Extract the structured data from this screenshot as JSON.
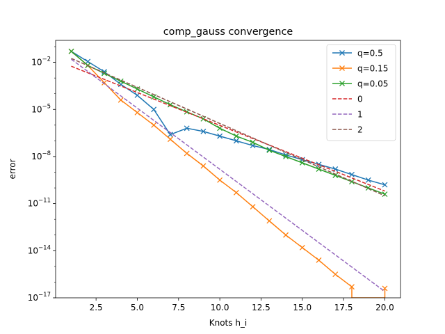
{
  "chart_data": {
    "type": "line",
    "title": "comp_gauss convergence",
    "xlabel": "Knots h_i",
    "ylabel": "error",
    "xlim": [
      0.05,
      20.95
    ],
    "ylim_log10": [
      -17,
      -0.6
    ],
    "yscale": "log",
    "x_ticks": [
      2.5,
      5.0,
      7.5,
      10.0,
      12.5,
      15.0,
      17.5,
      20.0
    ],
    "x_tick_labels": [
      "2.5",
      "5.0",
      "7.5",
      "10.0",
      "12.5",
      "15.0",
      "17.5",
      "20.0"
    ],
    "y_ticks_log10": [
      -17,
      -14,
      -11,
      -8,
      -5,
      -2
    ],
    "y_tick_labels": [
      {
        "base": "10",
        "exp": "−17"
      },
      {
        "base": "10",
        "exp": "−14"
      },
      {
        "base": "10",
        "exp": "−11"
      },
      {
        "base": "10",
        "exp": "−8"
      },
      {
        "base": "10",
        "exp": "−5"
      },
      {
        "base": "10",
        "exp": "−2"
      }
    ],
    "legend_position": "top-right",
    "series": [
      {
        "name": "q=0.5",
        "color": "#1f77b4",
        "style": "solid-x",
        "x": [
          1,
          2,
          3,
          4,
          5,
          6,
          7,
          8,
          9,
          10,
          11,
          12,
          13,
          14,
          15,
          16,
          17,
          18,
          19,
          20
        ],
        "log10_y": [
          -1.3,
          -1.95,
          -2.6,
          -3.4,
          -4.1,
          -5.0,
          -6.6,
          -6.2,
          -6.4,
          -6.7,
          -7.0,
          -7.3,
          -7.55,
          -7.9,
          -8.2,
          -8.5,
          -8.8,
          -9.15,
          -9.5,
          -9.8
        ]
      },
      {
        "name": "q=0.15",
        "color": "#ff7f0e",
        "style": "solid-x",
        "x": [
          1,
          2,
          3,
          4,
          5,
          6,
          7,
          8,
          9,
          10,
          11,
          12,
          13,
          14,
          15,
          16,
          17,
          18,
          18,
          20,
          20
        ],
        "log10_y": [
          -1.3,
          -2.2,
          -3.3,
          -4.4,
          -5.2,
          -6.0,
          -6.9,
          -7.8,
          -8.6,
          -9.5,
          -10.3,
          -11.2,
          -12.1,
          -13.0,
          -13.8,
          -14.6,
          -15.5,
          -16.3,
          -17,
          -17,
          -16.4
        ],
        "note_drop": "drops to 0 at x=18 and x=19"
      },
      {
        "name": "q=0.05",
        "color": "#2ca02c",
        "style": "solid-x",
        "x": [
          1,
          2,
          3,
          4,
          5,
          6,
          7,
          8,
          9,
          10,
          11,
          12,
          13,
          14,
          15,
          16,
          17,
          18,
          19,
          20
        ],
        "log10_y": [
          -1.3,
          -2.2,
          -2.7,
          -3.2,
          -3.7,
          -4.2,
          -4.7,
          -5.15,
          -5.6,
          -6.2,
          -6.7,
          -7.1,
          -7.6,
          -8.0,
          -8.4,
          -8.8,
          -9.2,
          -9.6,
          -10.0,
          -10.4
        ]
      },
      {
        "name": "0",
        "color": "#d62728",
        "style": "dashed",
        "x": [
          1,
          20
        ],
        "log10_y": [
          -2.25,
          -10.2
        ]
      },
      {
        "name": "1",
        "color": "#9467bd",
        "style": "dashed",
        "x": [
          1,
          20
        ],
        "log10_y": [
          -1.8,
          -16.6
        ]
      },
      {
        "name": "2",
        "color": "#8c564b",
        "style": "dashed",
        "x": [
          1,
          20
        ],
        "log10_y": [
          -1.75,
          -10.5
        ]
      }
    ]
  }
}
